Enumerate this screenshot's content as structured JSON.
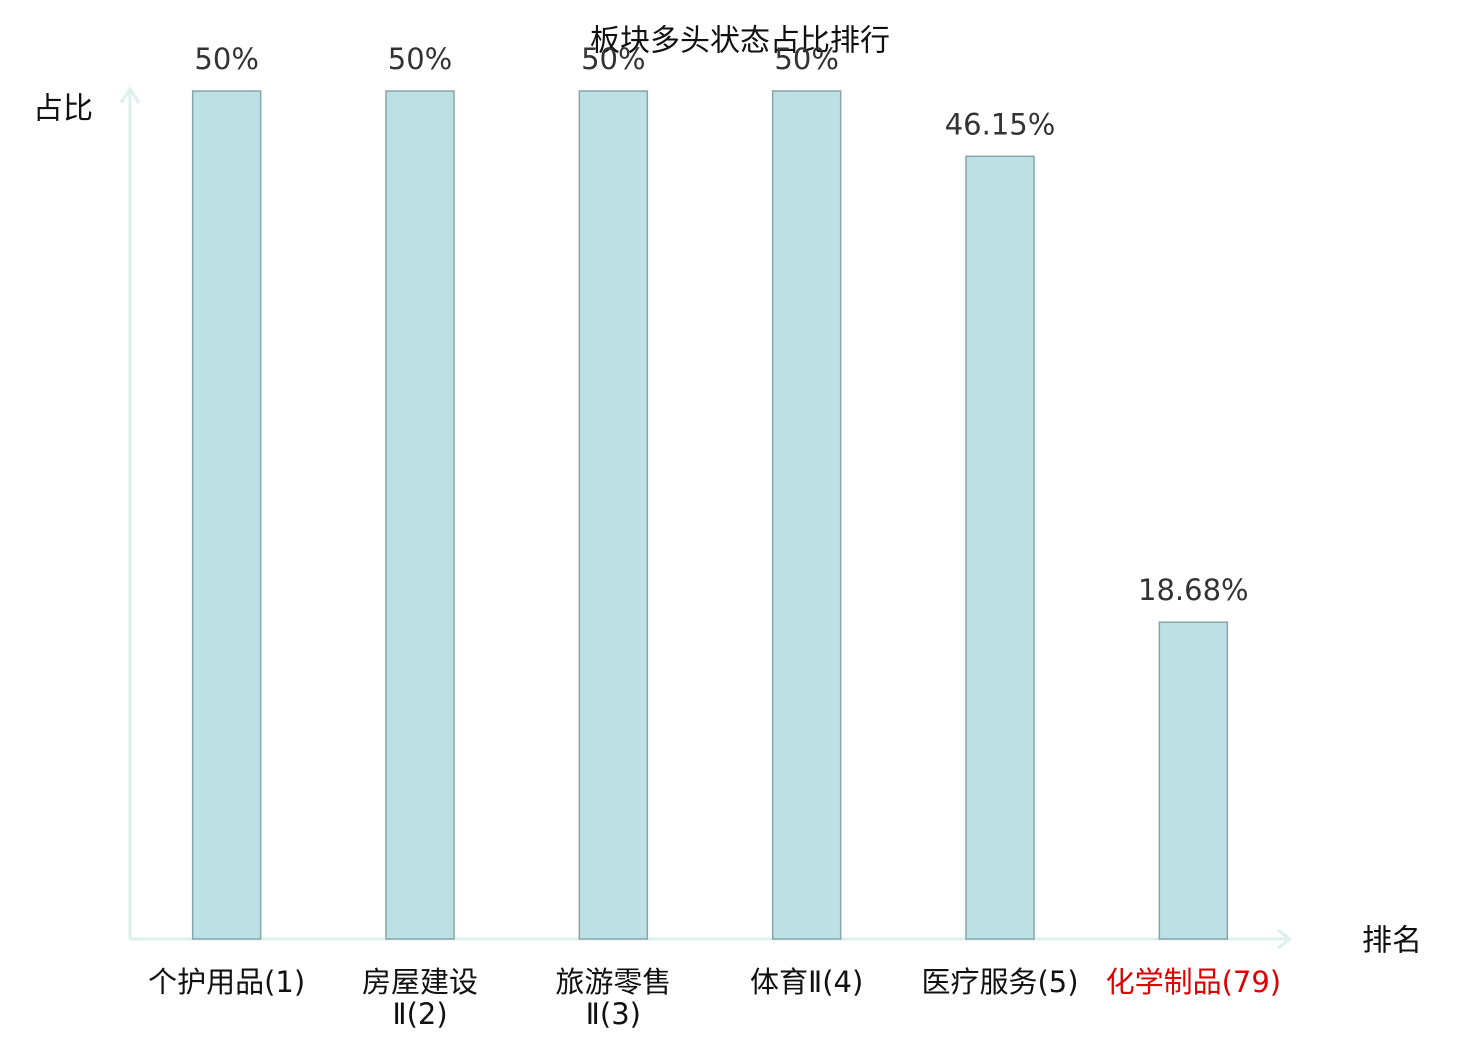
{
  "chart_data": {
    "type": "bar",
    "title": "板块多头状态占比排行",
    "y_label": "占比",
    "x_label": "排名",
    "categories": [
      "个护用品(1)",
      "房屋建设\nⅡ(2)",
      "旅游零售\nⅡ(3)",
      "体育Ⅱ(4)",
      "医疗服务(5)",
      "化学制品(79)"
    ],
    "category_colors": [
      "#111111",
      "#111111",
      "#111111",
      "#111111",
      "#111111",
      "#e00000"
    ],
    "values": [
      50,
      50,
      50,
      50,
      46.15,
      18.68
    ],
    "value_labels": [
      "50%",
      "50%",
      "50%",
      "50%",
      "46.15%",
      "18.68%"
    ],
    "color": "#bce0e3",
    "edge_color": "#86a6a9",
    "axis_color": "#ddf0ee",
    "ylim": [
      0,
      50
    ]
  }
}
